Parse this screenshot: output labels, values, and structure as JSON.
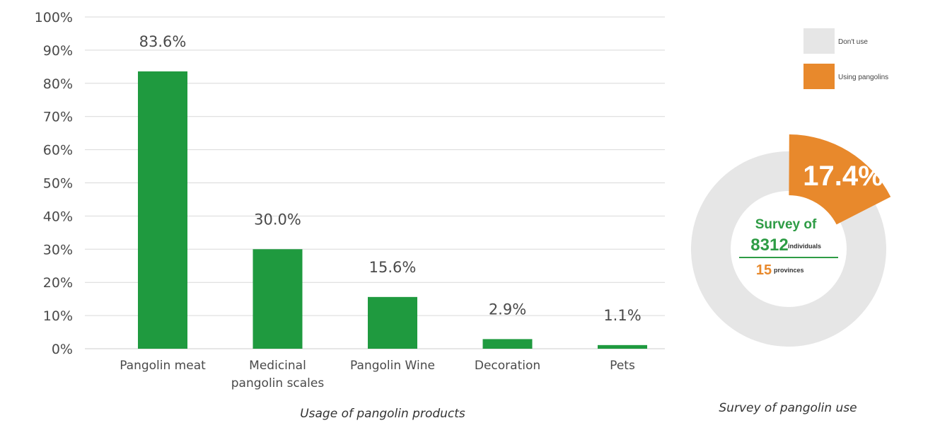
{
  "colors": {
    "bar": "#1f9a3f",
    "grid": "#d9d9d9",
    "donut_other": "#e6e6e6",
    "donut_highlight": "#e8892c",
    "center_green": "#2e9c45",
    "center_orange": "#e8892c"
  },
  "chart_data": [
    {
      "type": "bar",
      "categories": [
        "Pangolin meat",
        "Medicinal pangolin scales",
        "Pangolin Wine",
        "Decoration",
        "Pets"
      ],
      "category_lines": [
        [
          "Pangolin meat"
        ],
        [
          "Medicinal",
          "pangolin scales"
        ],
        [
          "Pangolin Wine"
        ],
        [
          "Decoration"
        ],
        [
          "Pets"
        ]
      ],
      "values": [
        83.6,
        30.0,
        15.6,
        2.9,
        1.1
      ],
      "value_labels": [
        "83.6%",
        "30.0%",
        "15.6%",
        "2.9%",
        "1.1%"
      ],
      "ylim": [
        0,
        100
      ],
      "yticks": [
        0,
        10,
        20,
        30,
        40,
        50,
        60,
        70,
        80,
        90,
        100
      ],
      "ytick_labels": [
        "0%",
        "10%",
        "20%",
        "30%",
        "40%",
        "50%",
        "60%",
        "70%",
        "80%",
        "90%",
        "100%"
      ],
      "grid": true,
      "caption": "Usage of pangolin products"
    },
    {
      "type": "pie",
      "categories": [
        "Don't use",
        "Using pangolins"
      ],
      "values": [
        82.6,
        17.4
      ],
      "highlight_label": "17.4%",
      "legend_position": "top-right",
      "center": {
        "title": "Survey of",
        "count": "8312",
        "count_unit": "individuals",
        "provinces": "15",
        "provinces_unit": "provinces"
      },
      "caption": "Survey of pangolin use"
    }
  ]
}
